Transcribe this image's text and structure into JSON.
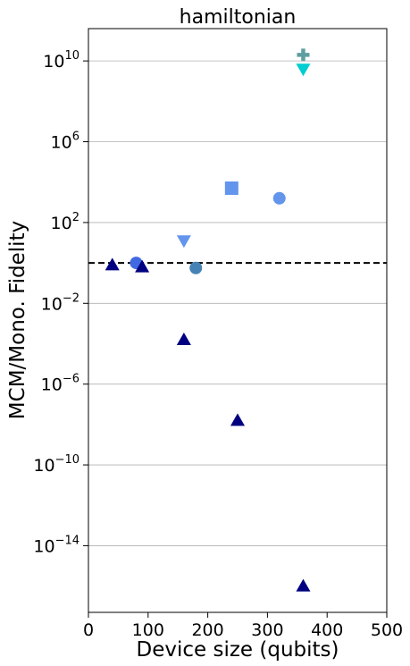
{
  "chart_data": {
    "type": "scatter",
    "title": "hamiltonian",
    "xlabel": "Device size (qubits)",
    "ylabel": "MCM/Mono. Fidelity",
    "xlim": [
      0,
      500
    ],
    "ylim_log10": [
      -17.3,
      11.6
    ],
    "yscale": "log",
    "grid": "horizontal",
    "x_ticks": [
      {
        "value": 0,
        "label": "0"
      },
      {
        "value": 100,
        "label": "100"
      },
      {
        "value": 200,
        "label": "200"
      },
      {
        "value": 300,
        "label": "300"
      },
      {
        "value": 400,
        "label": "400"
      },
      {
        "value": 500,
        "label": "500"
      }
    ],
    "y_ticks": [
      {
        "exp": 10,
        "base": "10",
        "sup": "10"
      },
      {
        "exp": 6,
        "base": "10",
        "sup": "6"
      },
      {
        "exp": 2,
        "base": "10",
        "sup": "2"
      },
      {
        "exp": -2,
        "base": "10",
        "sup": "−2"
      },
      {
        "exp": -6,
        "base": "10",
        "sup": "−6"
      },
      {
        "exp": -10,
        "base": "10",
        "sup": "−10"
      },
      {
        "exp": -14,
        "base": "10",
        "sup": "−14"
      }
    ],
    "reference_line": {
      "y_log10": 0,
      "style": "dashed",
      "color": "#000000"
    },
    "points": [
      {
        "x": 360,
        "y_log10": 10.3,
        "marker": "plus",
        "color": "#5f9ea0"
      },
      {
        "x": 360,
        "y_log10": 9.6,
        "marker": "triangle-down",
        "color": "#00ced1"
      },
      {
        "x": 240,
        "y_log10": 3.7,
        "marker": "square",
        "color": "#6495ed"
      },
      {
        "x": 320,
        "y_log10": 3.2,
        "marker": "circle",
        "color": "#6495ed"
      },
      {
        "x": 160,
        "y_log10": 1.1,
        "marker": "triangle-down",
        "color": "#6495ed"
      },
      {
        "x": 80,
        "y_log10": -0.0,
        "marker": "circle",
        "color": "#4169e1"
      },
      {
        "x": 180,
        "y_log10": -0.25,
        "marker": "circle",
        "color": "#4682b4"
      },
      {
        "x": 40,
        "y_log10": -0.1,
        "marker": "triangle-up",
        "color": "#000080"
      },
      {
        "x": 90,
        "y_log10": -0.2,
        "marker": "triangle-up",
        "color": "#000080"
      },
      {
        "x": 160,
        "y_log10": -3.8,
        "marker": "triangle-up",
        "color": "#000080"
      },
      {
        "x": 250,
        "y_log10": -7.8,
        "marker": "triangle-up",
        "color": "#000080"
      },
      {
        "x": 360,
        "y_log10": -16.0,
        "marker": "triangle-up",
        "color": "#000080"
      }
    ]
  }
}
